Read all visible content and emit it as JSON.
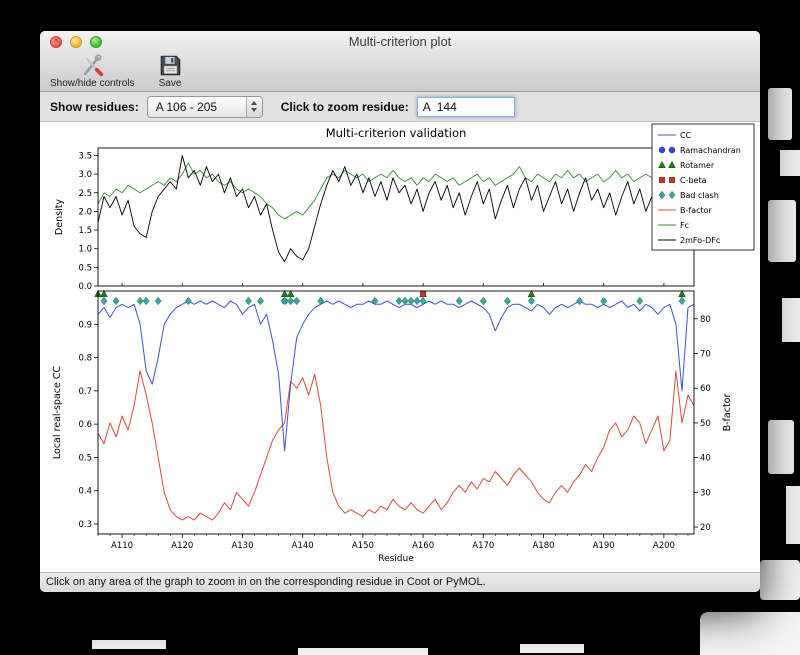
{
  "window": {
    "title": "Multi-criterion plot",
    "toolbar": {
      "show_hide_label": "Show/hide controls",
      "save_label": "Save"
    },
    "controls": {
      "show_residues_label": "Show residues:",
      "range_value": "A 106 - 205",
      "zoom_label": "Click to zoom residue:",
      "zoom_value": "A  144"
    },
    "status_text": "Click on any area of the graph to zoom in on the corresponding residue in Coot or PyMOL."
  },
  "chart_data": {
    "type": "line",
    "title": "Multi-criterion validation",
    "xlabel": "Residue",
    "residues": {
      "start": 106,
      "end": 205
    },
    "x_ticks": [
      110,
      120,
      130,
      140,
      150,
      160,
      170,
      180,
      190,
      200
    ],
    "x_tick_labels": [
      "A110",
      "A120",
      "A130",
      "A140",
      "A150",
      "A160",
      "A170",
      "A180",
      "A190",
      "A200"
    ],
    "top": {
      "ylabel": "Density",
      "ylim": [
        0,
        3.7
      ],
      "yticks": [
        0,
        0.5,
        1,
        1.5,
        2,
        2.5,
        3,
        3.5
      ],
      "series": [
        {
          "name": "Fc",
          "color": "#2f8f2f",
          "values": [
            2.2,
            2.5,
            2.4,
            2.6,
            2.5,
            2.7,
            2.6,
            2.5,
            2.6,
            2.7,
            2.8,
            2.7,
            2.9,
            2.8,
            3.0,
            3.3,
            3.0,
            3.1,
            2.9,
            3.0,
            2.8,
            2.7,
            2.8,
            2.6,
            2.5,
            2.6,
            2.5,
            2.4,
            2.2,
            2.1,
            1.9,
            1.8,
            1.9,
            2.0,
            1.9,
            2.1,
            2.3,
            2.6,
            2.9,
            3.0,
            2.9,
            3.1,
            3.0,
            2.9,
            3.0,
            2.8,
            2.9,
            3.0,
            2.9,
            3.1,
            2.9,
            2.8,
            2.9,
            2.7,
            2.9,
            2.8,
            3.0,
            2.9,
            2.8,
            2.9,
            2.7,
            2.8,
            2.9,
            3.0,
            2.8,
            2.9,
            2.7,
            2.8,
            2.9,
            3.0,
            3.2,
            2.9,
            2.8,
            3.0,
            2.9,
            2.8,
            3.0,
            2.9,
            3.1,
            2.9,
            3.0,
            2.8,
            2.9,
            3.0,
            2.8,
            2.9,
            3.1,
            2.9,
            3.0,
            2.8,
            2.9,
            3.0,
            2.9,
            2.7,
            2.8,
            2.9,
            2.6,
            2.8,
            3.0,
            2.9
          ]
        },
        {
          "name": "2mFo-DFc",
          "color": "#000000",
          "values": [
            1.7,
            2.4,
            2.1,
            2.4,
            1.9,
            2.3,
            1.6,
            1.4,
            1.3,
            2.0,
            2.4,
            2.6,
            2.8,
            2.6,
            3.5,
            2.9,
            3.1,
            2.7,
            3.2,
            2.8,
            3.0,
            2.5,
            2.9,
            2.4,
            2.6,
            2.1,
            2.4,
            1.9,
            2.2,
            1.5,
            0.9,
            0.65,
            1.0,
            0.8,
            0.7,
            1.0,
            1.6,
            2.2,
            2.7,
            3.1,
            2.8,
            3.2,
            2.7,
            3.0,
            2.5,
            2.9,
            2.4,
            2.8,
            2.3,
            2.9,
            2.5,
            2.7,
            2.2,
            2.6,
            2.0,
            2.5,
            2.8,
            2.3,
            2.7,
            2.1,
            2.5,
            1.9,
            2.4,
            2.8,
            2.2,
            2.6,
            1.8,
            2.3,
            2.7,
            2.1,
            2.6,
            2.9,
            2.3,
            2.7,
            2.0,
            2.4,
            2.8,
            2.2,
            2.6,
            2.0,
            2.5,
            2.9,
            2.3,
            2.6,
            2.1,
            2.5,
            1.9,
            2.4,
            2.8,
            2.2,
            2.6,
            2.0,
            2.4,
            1.8,
            2.3,
            2.7,
            2.1,
            2.5,
            2.9,
            2.4
          ]
        }
      ]
    },
    "bottom": {
      "ylabel_left": "Local real-space CC",
      "ylabel_left_color": "#3a55d1",
      "ylabel_right": "B-factor",
      "ylabel_right_color": "#d84a3c",
      "ylim_left": [
        0.27,
        1.0
      ],
      "yticks_left": [
        0.3,
        0.4,
        0.5,
        0.6,
        0.7,
        0.8,
        0.9
      ],
      "ylim_right": [
        18,
        88
      ],
      "yticks_right": [
        20,
        30,
        40,
        50,
        60,
        70,
        80
      ],
      "series": [
        {
          "name": "B-factor",
          "axis": "right",
          "color": "#d84a3c",
          "values": [
            47,
            44,
            50,
            46,
            52,
            48,
            55,
            65,
            58,
            50,
            40,
            30,
            25,
            23,
            22,
            23,
            22,
            24,
            23,
            22,
            24,
            27,
            25,
            30,
            28,
            26,
            30,
            35,
            40,
            45,
            48,
            50,
            62,
            60,
            63,
            58,
            64,
            55,
            40,
            30,
            26,
            24,
            25,
            24,
            23,
            25,
            24,
            26,
            25,
            28,
            26,
            25,
            27,
            25,
            24,
            26,
            28,
            25,
            27,
            30,
            32,
            30,
            33,
            31,
            34,
            33,
            36,
            34,
            32,
            35,
            37,
            35,
            33,
            30,
            28,
            27,
            30,
            32,
            30,
            33,
            35,
            38,
            36,
            40,
            43,
            48,
            50,
            46,
            48,
            52,
            50,
            44,
            48,
            52,
            42,
            45,
            65,
            50,
            58,
            55
          ]
        },
        {
          "name": "CC",
          "axis": "left",
          "color": "#3a55d1",
          "values": [
            0.93,
            0.95,
            0.92,
            0.95,
            0.96,
            0.95,
            0.96,
            0.9,
            0.76,
            0.72,
            0.8,
            0.9,
            0.93,
            0.95,
            0.96,
            0.97,
            0.96,
            0.97,
            0.96,
            0.97,
            0.96,
            0.95,
            0.97,
            0.96,
            0.93,
            0.95,
            0.96,
            0.9,
            0.93,
            0.85,
            0.75,
            0.52,
            0.72,
            0.86,
            0.9,
            0.93,
            0.95,
            0.96,
            0.97,
            0.96,
            0.97,
            0.96,
            0.95,
            0.96,
            0.96,
            0.97,
            0.96,
            0.96,
            0.97,
            0.96,
            0.95,
            0.96,
            0.96,
            0.95,
            0.96,
            0.97,
            0.96,
            0.97,
            0.96,
            0.96,
            0.95,
            0.96,
            0.97,
            0.96,
            0.95,
            0.93,
            0.88,
            0.92,
            0.95,
            0.96,
            0.96,
            0.95,
            0.94,
            0.96,
            0.95,
            0.93,
            0.95,
            0.96,
            0.95,
            0.96,
            0.97,
            0.96,
            0.96,
            0.95,
            0.96,
            0.95,
            0.96,
            0.97,
            0.95,
            0.96,
            0.94,
            0.96,
            0.95,
            0.93,
            0.95,
            0.96,
            0.9,
            0.7,
            0.95,
            0.96
          ]
        }
      ],
      "markers": {
        "rotamer": {
          "shape": "triangle",
          "color": "#1f7a1f",
          "residues": [
            106,
            107,
            137,
            138,
            160,
            178,
            203
          ]
        },
        "c_beta": {
          "shape": "square",
          "color": "#c03a2b",
          "residues": [
            160
          ]
        },
        "ramachandran": {
          "shape": "circle",
          "color": "#2e4bd8",
          "residues": [
            137
          ]
        },
        "bad_clash": {
          "shape": "diamond",
          "color": "#3aa69c",
          "residues": [
            107,
            109,
            113,
            114,
            116,
            121,
            131,
            133,
            137,
            138,
            139,
            143,
            152,
            156,
            157,
            158,
            159,
            160,
            166,
            170,
            174,
            178,
            186,
            190,
            196,
            203
          ]
        }
      }
    },
    "legend": [
      {
        "label": "CC",
        "color": "#3a55d1",
        "type": "line"
      },
      {
        "label": "Ramachandran",
        "color": "#2e4bd8",
        "type": "circles"
      },
      {
        "label": "Rotamer",
        "color": "#1f7a1f",
        "type": "triangles"
      },
      {
        "label": "C-beta",
        "color": "#c03a2b",
        "type": "squares"
      },
      {
        "label": "Bad clash",
        "color": "#3aa69c",
        "type": "diamonds"
      },
      {
        "label": "B-factor",
        "color": "#d84a3c",
        "type": "line"
      },
      {
        "label": "Fc",
        "color": "#2f8f2f",
        "type": "line"
      },
      {
        "label": "2mFo-DFc",
        "color": "#000000",
        "type": "line"
      }
    ]
  }
}
